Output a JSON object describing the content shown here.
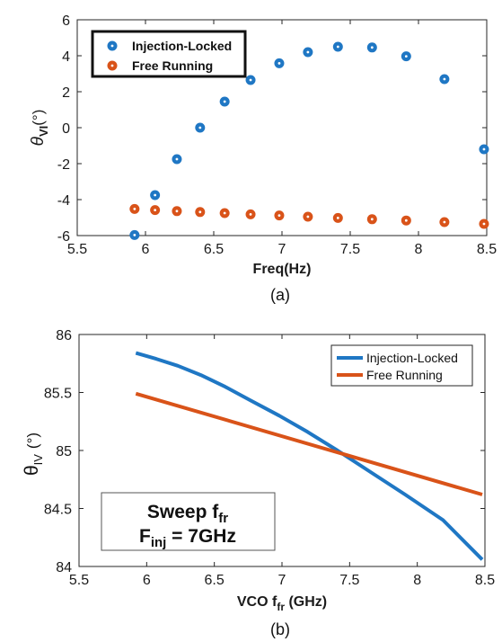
{
  "colors": {
    "blue": "#1f77c4",
    "orange": "#d95319",
    "axis": "#262626"
  },
  "chart_data": [
    {
      "type": "scatter",
      "panel_label": "(a)",
      "xlabel": "Freq(Hz)",
      "ylabel": {
        "main": "θ",
        "sub": "VI",
        "unit": "(°)"
      },
      "xlim": [
        5.5,
        8.5
      ],
      "ylim": [
        -6,
        6
      ],
      "xticks": [
        "5.5",
        "6",
        "6.5",
        "7",
        "7.5",
        "8",
        "8.5"
      ],
      "xtick_values": [
        5.5,
        6,
        6.5,
        7,
        7.5,
        8,
        8.5
      ],
      "yticks": [
        "-6",
        "-4",
        "-2",
        "0",
        "2",
        "4",
        "6"
      ],
      "ytick_values": [
        -6,
        -4,
        -2,
        0,
        2,
        4,
        6
      ],
      "legend_position": "top-left",
      "series": [
        {
          "name": "Injection-Locked",
          "color": "#1f77c4",
          "x": [
            5.92,
            6.07,
            6.23,
            6.4,
            6.58,
            6.77,
            6.98,
            7.19,
            7.41,
            7.66,
            7.91,
            8.19,
            8.48
          ],
          "y": [
            -5.97,
            -3.75,
            -1.75,
            0.0,
            1.45,
            2.65,
            3.58,
            4.2,
            4.5,
            4.46,
            3.97,
            2.7,
            -1.2
          ]
        },
        {
          "name": "Free Running",
          "color": "#d95319",
          "x": [
            5.92,
            6.07,
            6.23,
            6.4,
            6.58,
            6.77,
            6.98,
            7.19,
            7.41,
            7.66,
            7.91,
            8.19,
            8.48
          ],
          "y": [
            -4.52,
            -4.58,
            -4.64,
            -4.69,
            -4.75,
            -4.82,
            -4.88,
            -4.95,
            -5.02,
            -5.09,
            -5.16,
            -5.25,
            -5.35
          ]
        }
      ]
    },
    {
      "type": "line",
      "panel_label": "(b)",
      "xlabel": {
        "main": "VCO f",
        "sub": "fr",
        "unit": " (GHz)"
      },
      "ylabel": {
        "main": "θ",
        "sub": "IV",
        "unit": "(°)"
      },
      "xlim": [
        5.5,
        8.5
      ],
      "ylim": [
        84,
        86
      ],
      "xticks": [
        "5.5",
        "6",
        "6.5",
        "7",
        "7.5",
        "8",
        "8.5"
      ],
      "xtick_values": [
        5.5,
        6,
        6.5,
        7,
        7.5,
        8,
        8.5
      ],
      "yticks": [
        "84",
        "84.5",
        "85",
        "85.5",
        "86"
      ],
      "ytick_values": [
        84,
        84.5,
        85,
        85.5,
        86
      ],
      "legend_position": "top-right",
      "annotation": {
        "line1_main": "Sweep f",
        "line1_sub": "fr",
        "line2_main": "F",
        "line2_sub": "inj",
        "line2_rest": " = 7GHz"
      },
      "series": [
        {
          "name": "Injection-Locked",
          "color": "#1f77c4",
          "x": [
            5.92,
            6.07,
            6.23,
            6.4,
            6.58,
            6.77,
            6.98,
            7.19,
            7.41,
            7.66,
            7.91,
            8.19,
            8.48
          ],
          "y": [
            85.84,
            85.79,
            85.73,
            85.65,
            85.55,
            85.43,
            85.3,
            85.16,
            85.0,
            84.81,
            84.62,
            84.4,
            84.06
          ]
        },
        {
          "name": "Free Running",
          "color": "#d95319",
          "x": [
            5.92,
            8.48
          ],
          "y": [
            85.49,
            84.62
          ]
        }
      ]
    }
  ]
}
